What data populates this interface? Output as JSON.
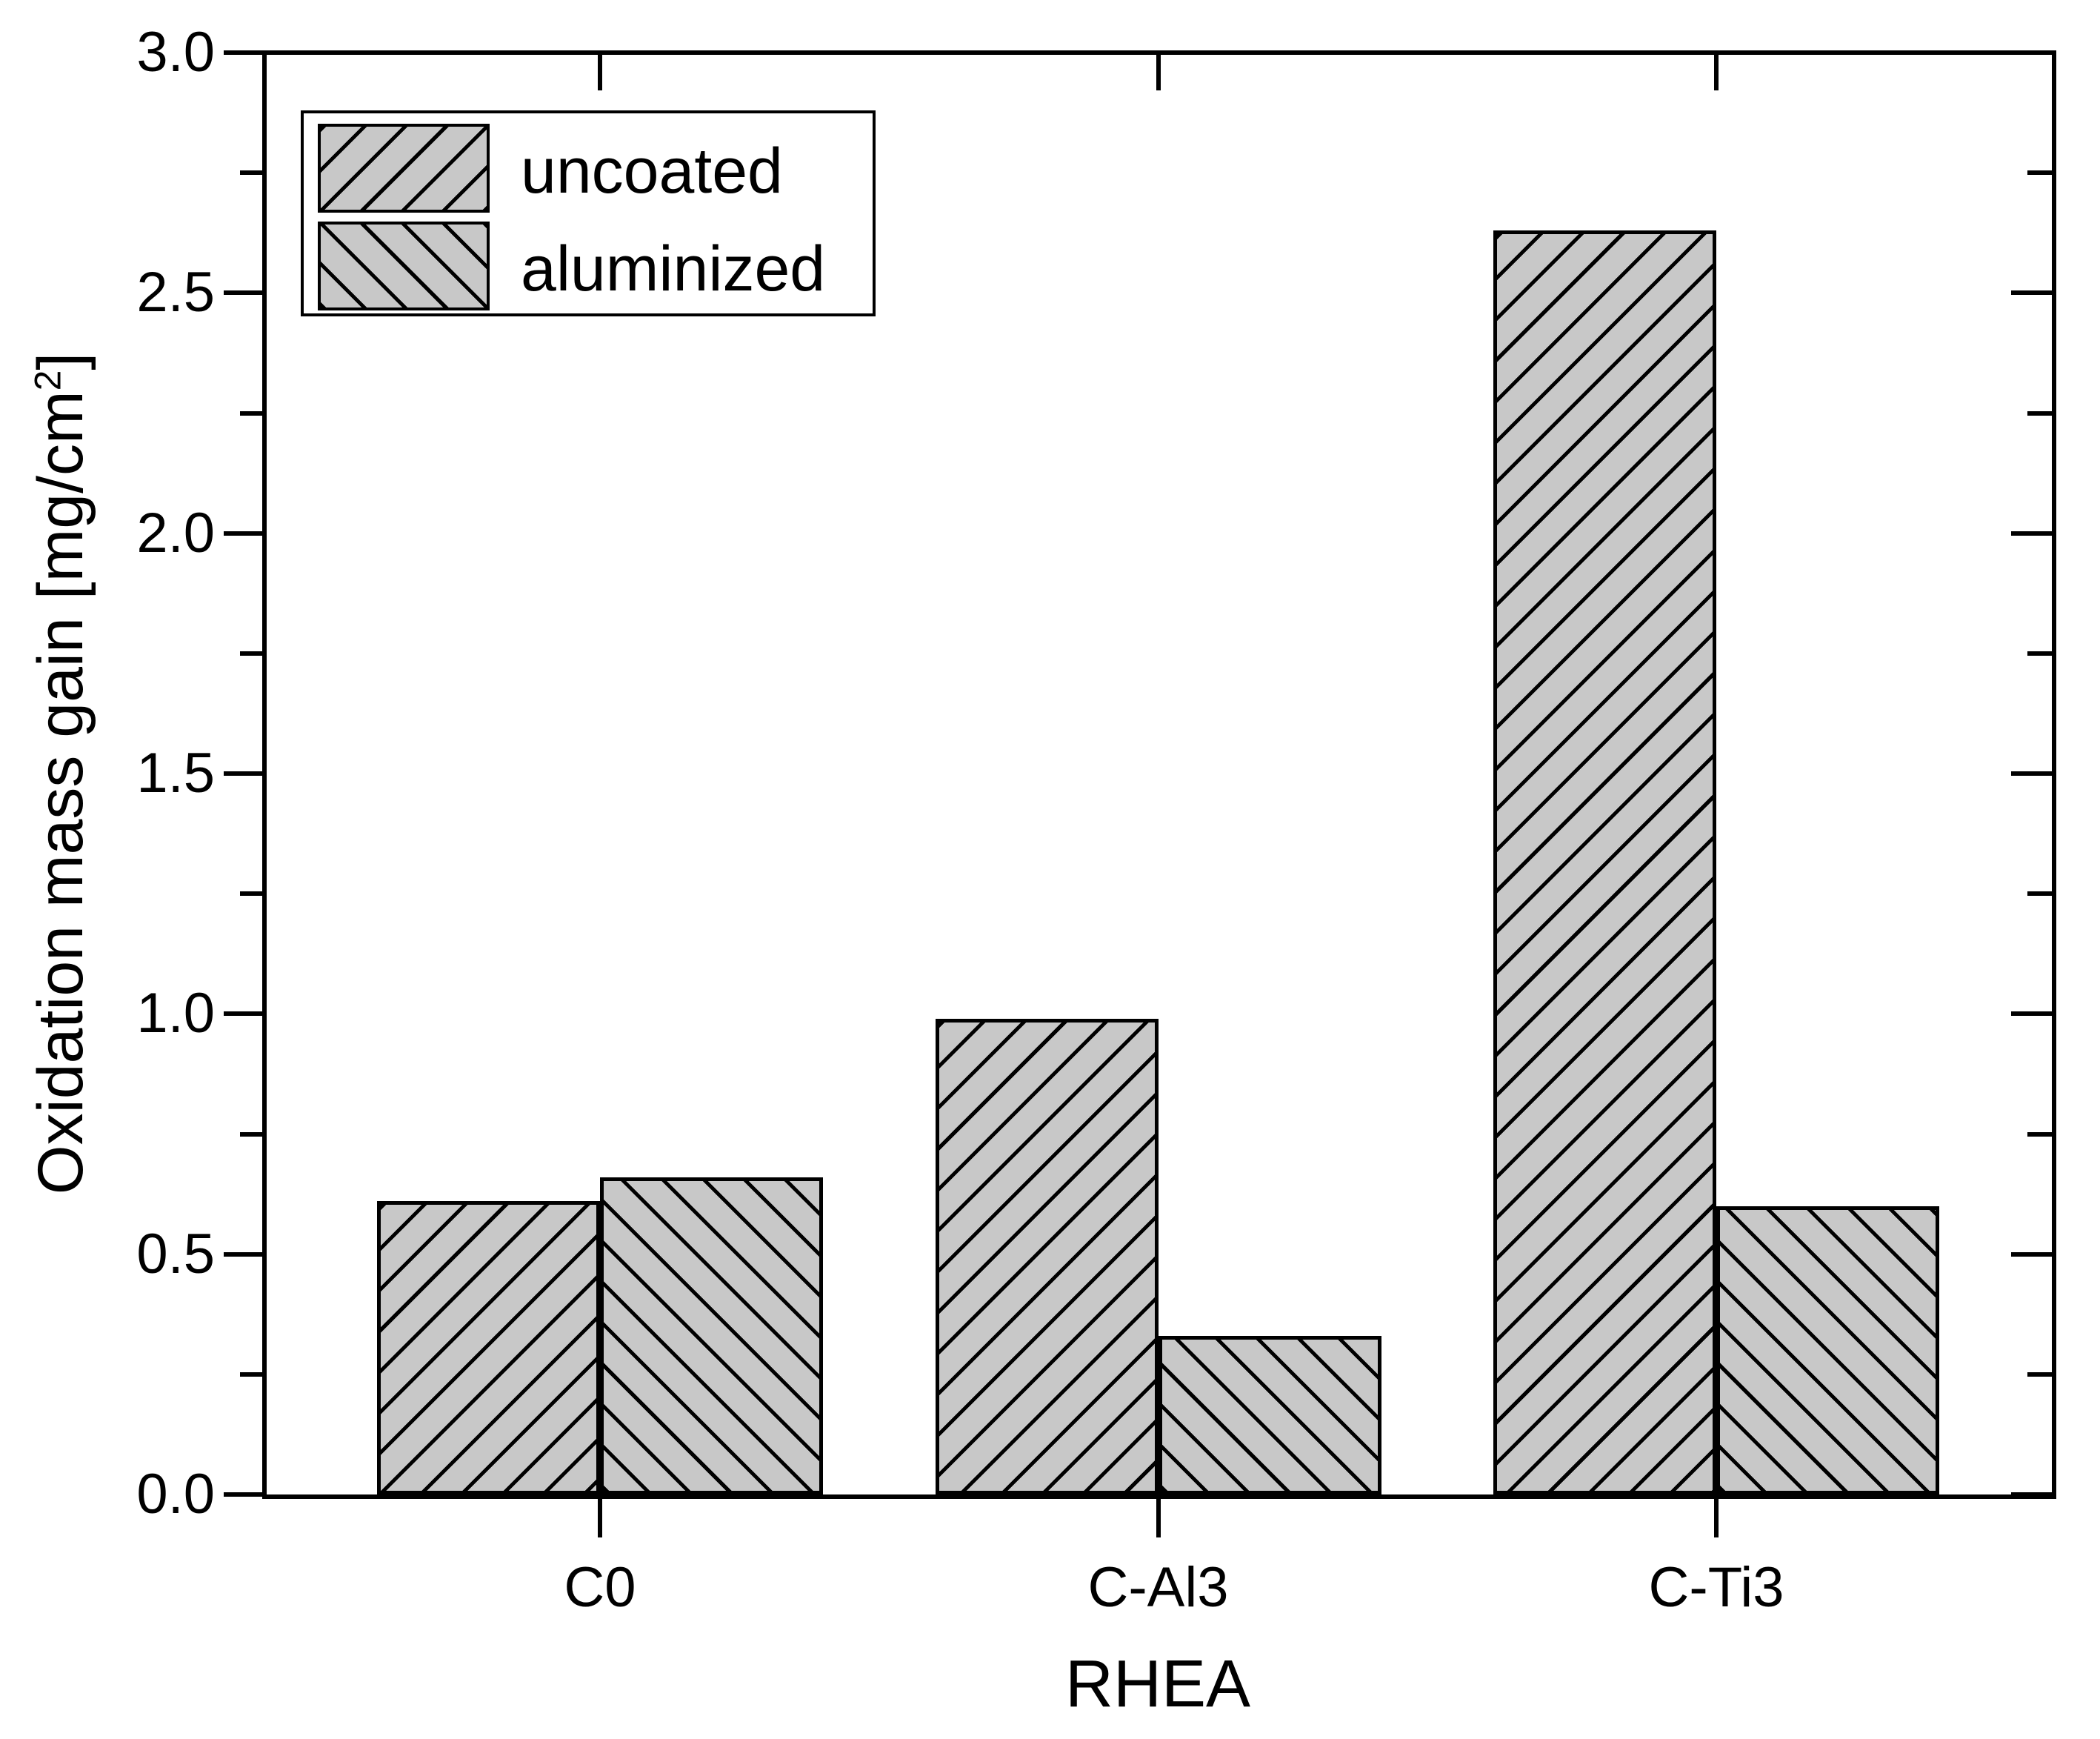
{
  "figure": {
    "background": "#ffffff"
  },
  "chart_data": {
    "type": "bar",
    "title": "",
    "categories": [
      "C0",
      "C-Al3",
      "C-Ti3"
    ],
    "series": [
      {
        "name": "uncoated",
        "hatch": "forward-diagonal",
        "values": [
          0.61,
          0.99,
          2.63
        ]
      },
      {
        "name": "aluminized",
        "hatch": "backward-diagonal",
        "values": [
          0.66,
          0.33,
          0.6
        ]
      }
    ],
    "xlabel": "RHEA",
    "ylabel": "Oxidation mass gain [mg/cm²]",
    "ylabel_parts": {
      "prefix": "Oxidation mass gain [mg/cm",
      "superscript": "2",
      "suffix": "]"
    },
    "ylim": [
      0,
      3.0
    ],
    "y_major_ticks": {
      "values": [
        0,
        0.5,
        1.0,
        1.5,
        2.0,
        2.5,
        3.0
      ],
      "labels": [
        "0.0",
        "0.5",
        "1.0",
        "1.5",
        "2.0",
        "2.5",
        "3.0"
      ]
    },
    "y_minor_ticks": [
      0.25,
      0.75,
      1.25,
      1.75,
      2.25,
      2.75
    ],
    "grid": "off",
    "legend_position": "top-left",
    "bar_fill_color": "#c8c8c8",
    "hatch_color": "#000000",
    "axis_color": "#000000",
    "background_color": "#ffffff"
  }
}
